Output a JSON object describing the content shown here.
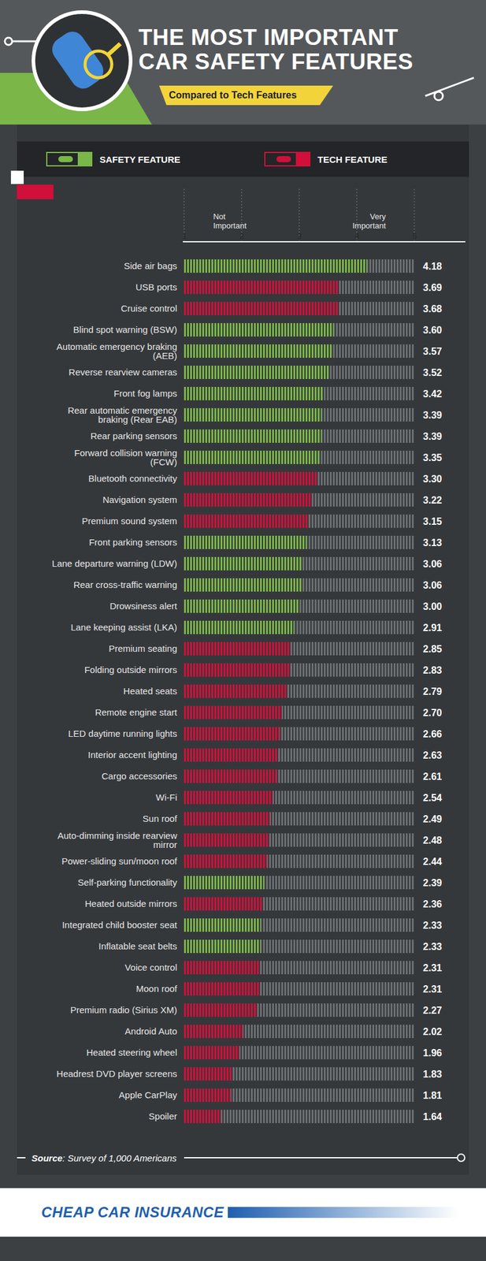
{
  "chart_data": {
    "type": "bar",
    "orientation": "horizontal",
    "title": "THE MOST IMPORTANT CAR SAFETY FEATURES",
    "subtitle": "Compared to Tech Features",
    "annotations": [
      "Not Important",
      "Very Important"
    ],
    "source": "Source: Survey of 1,000 Americans",
    "brand": "CHEAP CAR INSURANCE",
    "categories": [
      "Side air bags",
      "USB ports",
      "Cruise control",
      "Blind spot warning (BSW)",
      "Automatic emergency braking (AEB)",
      "Reverse rearview cameras",
      "Front fog lamps",
      "Rear automatic emergency braking (Rear EAB)",
      "Rear parking sensors",
      "Forward collision warning (FCW)",
      "Bluetooth connectivity",
      "Navigation system",
      "Premium sound system",
      "Front parking sensors",
      "Lane departure warning (LDW)",
      "Rear cross-traffic warning",
      "Drowsiness alert",
      "Lane keeping assist (LKA)",
      "Premium seating",
      "Folding outside mirrors",
      "Heated seats",
      "Remote engine start",
      "LED daytime running lights",
      "Interior accent lighting",
      "Cargo accessories",
      "Wi-Fi",
      "Sun roof",
      "Auto-dimming inside rearview mirror",
      "Power-sliding sun/moon roof",
      "Self-parking functionality",
      "Heated outside mirrors",
      "Integrated child booster seat",
      "Inflatable seat belts",
      "Voice control",
      "Moon roof",
      "Premium radio (Sirius XM)",
      "Android Auto",
      "Heated steering wheel",
      "Headrest DVD player screens",
      "Apple CarPlay",
      "Spoiler"
    ],
    "series": [
      {
        "name": "SAFETY FEATURE",
        "color": "#7ab648",
        "values": [
          4.18,
          null,
          null,
          3.6,
          3.57,
          3.52,
          3.42,
          3.39,
          3.39,
          3.35,
          null,
          null,
          null,
          3.13,
          3.06,
          3.06,
          3.0,
          2.91,
          null,
          null,
          null,
          null,
          null,
          null,
          null,
          null,
          null,
          null,
          null,
          2.39,
          null,
          2.33,
          2.33,
          null,
          null,
          null,
          null,
          null,
          null,
          null,
          null
        ],
        "value_labels": [
          "4.18",
          null,
          null,
          "3.60",
          "3.57",
          "3.52",
          "3.42",
          "3.39",
          "3.39",
          "3.35",
          null,
          null,
          null,
          "3.13",
          "3.06",
          "3.06",
          "3.00",
          "2.91",
          null,
          null,
          null,
          null,
          null,
          null,
          null,
          null,
          null,
          null,
          null,
          "2.39",
          null,
          "2.33",
          "2.33",
          null,
          null,
          null,
          null,
          null,
          null,
          null,
          null
        ]
      },
      {
        "name": "TECH FEATURE",
        "color": "#d0103a",
        "values": [
          null,
          3.69,
          3.68,
          null,
          null,
          null,
          null,
          null,
          null,
          null,
          3.3,
          3.22,
          3.15,
          null,
          null,
          null,
          null,
          null,
          2.85,
          2.83,
          2.79,
          2.7,
          2.66,
          2.63,
          2.61,
          2.54,
          2.49,
          2.48,
          2.44,
          null,
          2.36,
          null,
          null,
          2.31,
          2.31,
          2.27,
          2.02,
          1.96,
          1.83,
          1.81,
          1.64
        ],
        "value_labels": [
          null,
          "3.69",
          "3.68",
          null,
          null,
          null,
          null,
          null,
          null,
          null,
          "3.30",
          "3.22",
          "3.15",
          null,
          null,
          null,
          null,
          null,
          "2.85",
          "2.83",
          "2.79",
          "2.70",
          "2.66",
          "2.63",
          "2.61",
          "2.54",
          "2.49",
          "2.48",
          "2.44",
          null,
          "2.36",
          null,
          null,
          "2.31",
          "2.31",
          "2.27",
          "2.02",
          "1.96",
          "1.83",
          "1.81",
          "1.64"
        ]
      }
    ],
    "xlim": [
      1,
      5
    ],
    "xticks": [
      1,
      2,
      3,
      4,
      5
    ],
    "grid": false,
    "legend": "top",
    "data_labels": true
  }
}
